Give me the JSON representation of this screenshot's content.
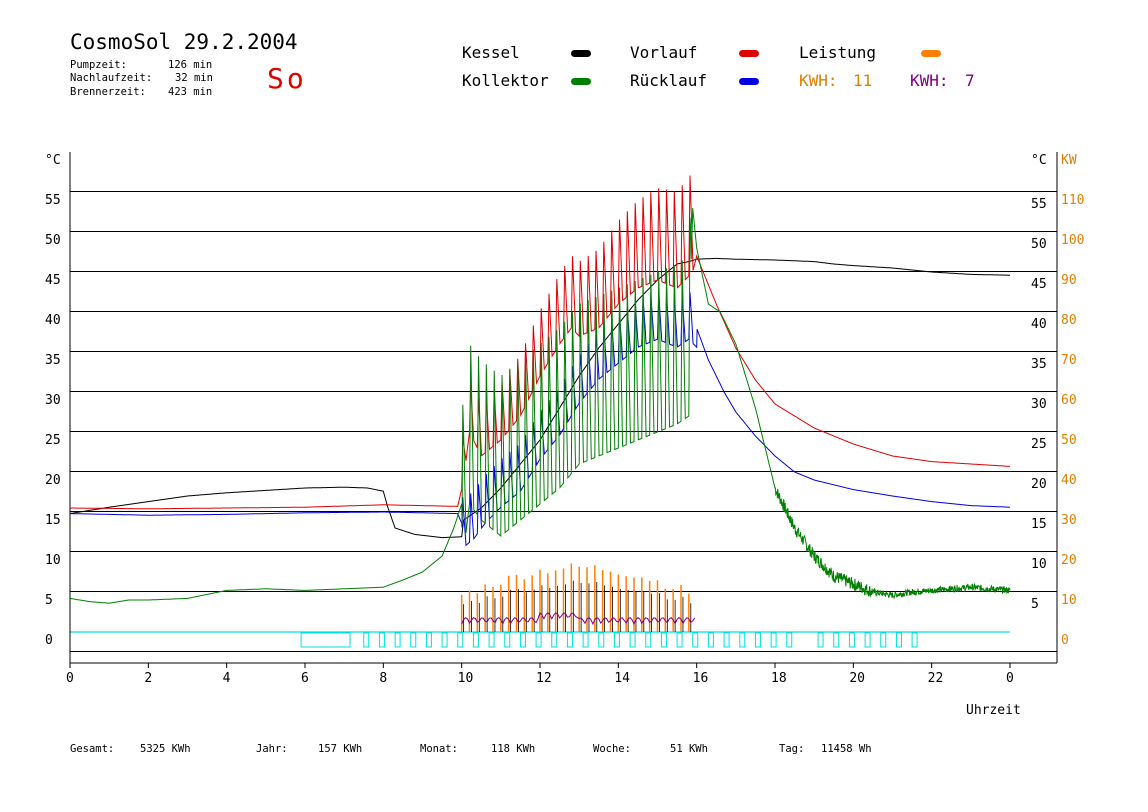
{
  "header": {
    "title": "CosmoSol 29.2.2004",
    "day": "So",
    "info": [
      {
        "label": "Pumpzeit:",
        "value": "126 min"
      },
      {
        "label": "Nachlaufzeit:",
        "value": "32 min"
      },
      {
        "label": "Brennerzeit:",
        "value": "423 min"
      }
    ]
  },
  "legend": {
    "kessel": "Kessel",
    "kollektor": "Kollektor",
    "vorlauf": "Vorlauf",
    "ruecklauf": "Rücklauf",
    "leistung": "Leistung",
    "kwh1_label": "KWH:",
    "kwh1_value": "11",
    "kwh2_label": "KWH:",
    "kwh2_value": "7"
  },
  "colors": {
    "kessel": "#000000",
    "kollektor": "#008000",
    "vorlauf": "#e00000",
    "ruecklauf": "#0000e0",
    "leistung": "#ff8000",
    "kwh2": "#800080",
    "cyan": "#00e0e0",
    "axis_right_kw": "#e08000"
  },
  "stats": {
    "gesamt_label": "Gesamt:",
    "gesamt_value": "5325 KWh",
    "jahr_label": "Jahr:",
    "jahr_value": "157 KWh",
    "monat_label": "Monat:",
    "monat_value": "118 KWh",
    "woche_label": "Woche:",
    "woche_value": "51 KWh",
    "tag_label": "Tag:",
    "tag_value": "11458 Wh"
  },
  "chart_data": {
    "type": "line",
    "xlabel": "Uhrzeit",
    "ylabel_left": "°C",
    "ylabel_right_1": "°C",
    "ylabel_right_2": "KW",
    "xlim": [
      0,
      24
    ],
    "ylim": [
      -4,
      60
    ],
    "x_ticks": [
      "0",
      "2",
      "4",
      "6",
      "8",
      "10",
      "12",
      "14",
      "16",
      "18",
      "20",
      "22",
      "0"
    ],
    "y_ticks": [
      0,
      5,
      10,
      15,
      20,
      25,
      30,
      35,
      40,
      45,
      50,
      55
    ],
    "y_ticks_right_kw": [
      0,
      10,
      20,
      30,
      40,
      50,
      60,
      70,
      80,
      90,
      100,
      110
    ],
    "grid": true,
    "series": [
      {
        "name": "Kessel",
        "color": "#000000",
        "points": [
          [
            0,
            14.8
          ],
          [
            1,
            15.6
          ],
          [
            2,
            16.3
          ],
          [
            3,
            17.0
          ],
          [
            4,
            17.4
          ],
          [
            5,
            17.7
          ],
          [
            6,
            18.0
          ],
          [
            7,
            18.1
          ],
          [
            7.6,
            18.0
          ],
          [
            8.0,
            17.6
          ],
          [
            8.1,
            15.8
          ],
          [
            8.3,
            13.0
          ],
          [
            8.8,
            12.2
          ],
          [
            9.5,
            11.8
          ],
          [
            10,
            11.9
          ],
          [
            10.05,
            14.0
          ],
          [
            10.5,
            15.5
          ],
          [
            11,
            18
          ],
          [
            11.5,
            21
          ],
          [
            12,
            24
          ],
          [
            12.5,
            28
          ],
          [
            13,
            32
          ],
          [
            13.5,
            35.5
          ],
          [
            14,
            38.5
          ],
          [
            14.5,
            41.5
          ],
          [
            15,
            44.0
          ],
          [
            15.5,
            46.0
          ],
          [
            15.8,
            46.3
          ],
          [
            16,
            46.6
          ],
          [
            16.5,
            46.7
          ],
          [
            17,
            46.6
          ],
          [
            18,
            46.5
          ],
          [
            19,
            46.3
          ],
          [
            19.5,
            46.0
          ],
          [
            20,
            45.8
          ],
          [
            21,
            45.5
          ],
          [
            22,
            45.0
          ],
          [
            23,
            44.7
          ],
          [
            24,
            44.6
          ]
        ]
      },
      {
        "name": "Vorlauf",
        "color": "#e00000",
        "points": [
          [
            0,
            15.5
          ],
          [
            2,
            15.4
          ],
          [
            4,
            15.5
          ],
          [
            6,
            15.6
          ],
          [
            8,
            15.9
          ],
          [
            9,
            15.8
          ],
          [
            9.9,
            15.7
          ],
          [
            10.05,
            19
          ],
          [
            10.2,
            25
          ],
          [
            10.5,
            22
          ],
          [
            11,
            24
          ],
          [
            11.5,
            27
          ],
          [
            12,
            32
          ],
          [
            12.5,
            36
          ],
          [
            12.8,
            38
          ],
          [
            13,
            37
          ],
          [
            13.5,
            38
          ],
          [
            14,
            41
          ],
          [
            14.5,
            43
          ],
          [
            15,
            44
          ],
          [
            15.5,
            43
          ],
          [
            15.9,
            45
          ],
          [
            16,
            47
          ],
          [
            16.5,
            41
          ],
          [
            17,
            35.5
          ],
          [
            17.5,
            31.5
          ],
          [
            18,
            28.5
          ],
          [
            18.5,
            27
          ],
          [
            19,
            25.5
          ],
          [
            20,
            23.5
          ],
          [
            21,
            22.0
          ],
          [
            22,
            21.3
          ],
          [
            23,
            21.0
          ],
          [
            24,
            20.7
          ]
        ]
      },
      {
        "name": "Rücklauf",
        "color": "#0000e0",
        "points": [
          [
            0,
            14.8
          ],
          [
            2,
            14.6
          ],
          [
            4,
            14.7
          ],
          [
            6,
            14.9
          ],
          [
            8,
            15.0
          ],
          [
            9,
            14.9
          ],
          [
            9.9,
            14.8
          ],
          [
            10.05,
            13
          ],
          [
            10.3,
            14
          ],
          [
            10.6,
            16
          ],
          [
            11,
            18
          ],
          [
            11.5,
            20
          ],
          [
            12,
            24
          ],
          [
            12.5,
            27
          ],
          [
            13,
            31
          ],
          [
            13.5,
            34
          ],
          [
            14,
            36
          ],
          [
            14.5,
            38
          ],
          [
            15,
            39
          ],
          [
            15.5,
            38
          ],
          [
            15.8,
            39
          ],
          [
            16,
            38
          ],
          [
            16.3,
            34
          ],
          [
            16.7,
            30
          ],
          [
            17,
            27.5
          ],
          [
            17.5,
            24.5
          ],
          [
            18,
            22
          ],
          [
            18.5,
            20
          ],
          [
            19,
            19
          ],
          [
            20,
            17.8
          ],
          [
            21,
            17
          ],
          [
            22,
            16.3
          ],
          [
            23,
            15.8
          ],
          [
            24,
            15.6
          ]
        ]
      },
      {
        "name": "Kollektor",
        "color": "#008000",
        "points": [
          [
            0,
            4.2
          ],
          [
            0.5,
            3.8
          ],
          [
            1,
            3.6
          ],
          [
            1.5,
            4.0
          ],
          [
            2,
            4.0
          ],
          [
            3,
            4.2
          ],
          [
            4,
            5.2
          ],
          [
            5,
            5.4
          ],
          [
            6,
            5.2
          ],
          [
            7,
            5.4
          ],
          [
            7.5,
            5.5
          ],
          [
            8,
            5.6
          ],
          [
            8.5,
            6.5
          ],
          [
            9,
            7.5
          ],
          [
            9.5,
            9.5
          ],
          [
            9.8,
            13
          ],
          [
            10,
            16
          ],
          [
            10.05,
            20
          ],
          [
            10.2,
            26
          ],
          [
            10.5,
            24
          ],
          [
            11,
            22
          ],
          [
            11.5,
            24
          ],
          [
            12,
            26
          ],
          [
            12.5,
            28
          ],
          [
            13,
            31
          ],
          [
            13.5,
            32
          ],
          [
            14,
            33
          ],
          [
            14.5,
            34
          ],
          [
            15,
            35
          ],
          [
            15.5,
            36
          ],
          [
            15.8,
            37
          ],
          [
            15.9,
            53
          ],
          [
            16,
            48
          ],
          [
            16.3,
            41
          ],
          [
            16.6,
            40
          ],
          [
            17,
            36
          ],
          [
            17.5,
            28
          ],
          [
            18,
            18
          ],
          [
            18.5,
            13
          ],
          [
            19,
            9.5
          ],
          [
            19.5,
            7
          ],
          [
            20,
            6
          ],
          [
            20.5,
            5
          ],
          [
            21,
            4.6
          ],
          [
            21.5,
            5.0
          ],
          [
            22,
            5.2
          ],
          [
            23,
            5.6
          ],
          [
            24,
            5.2
          ]
        ]
      }
    ]
  }
}
